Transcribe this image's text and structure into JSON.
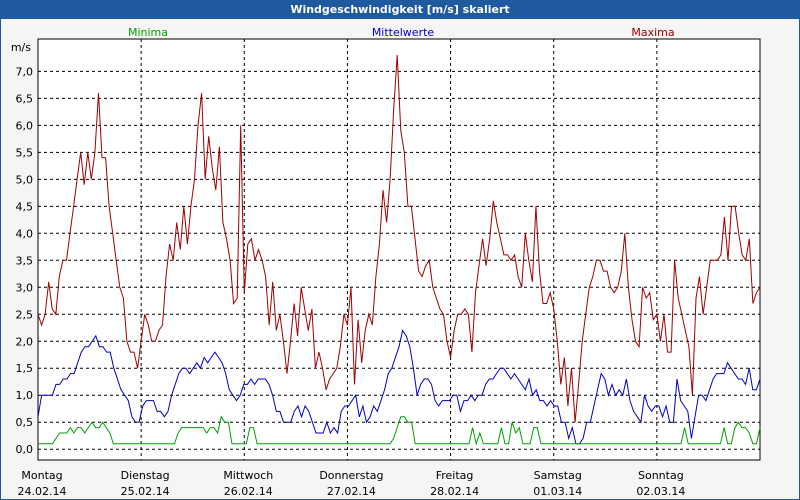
{
  "window": {
    "title": "Windgeschwindigkeit [m/s] skaliert"
  },
  "legend": {
    "minima": "Minima",
    "mittelwerte": "Mittelwerte",
    "maxima": "Maxima"
  },
  "colors": {
    "title_bar": "#1f5a9e",
    "plot_bg": "#ffffff",
    "grid": "#000000",
    "minima": "#00a000",
    "mittelwerte": "#0000c0",
    "maxima": "#a00000"
  },
  "chart_data": {
    "type": "line",
    "title": "Windgeschwindigkeit [m/s] skaliert",
    "ylabel": "m/s",
    "xlabel": "",
    "ylim": [
      -0.2,
      7.6
    ],
    "yticks": [
      "0,0",
      "0,5",
      "1,0",
      "1,5",
      "2,0",
      "2,5",
      "3,0",
      "3,5",
      "4,0",
      "4,5",
      "5,0",
      "5,5",
      "6,0",
      "6,5",
      "7,0"
    ],
    "ytick_values": [
      0,
      0.5,
      1,
      1.5,
      2,
      2.5,
      3,
      3.5,
      4,
      4.5,
      5,
      5.5,
      6,
      6.5,
      7
    ],
    "x_day_labels": [
      {
        "day": "Montag",
        "date": "24.02.14"
      },
      {
        "day": "Dienstag",
        "date": "25.02.14"
      },
      {
        "day": "Mittwoch",
        "date": "26.02.14"
      },
      {
        "day": "Donnerstag",
        "date": "27.02.14"
      },
      {
        "day": "Freitag",
        "date": "28.02.14"
      },
      {
        "day": "Samstag",
        "date": "01.03.14"
      },
      {
        "day": "Sonntag",
        "date": "02.03.14"
      }
    ],
    "grid": true,
    "series": [
      {
        "name": "Maxima",
        "values": [
          2.5,
          2.3,
          2.5,
          3.1,
          2.6,
          2.5,
          3.2,
          3.5,
          3.5,
          4.0,
          4.5,
          5.0,
          5.5,
          4.9,
          5.5,
          5.0,
          5.5,
          6.6,
          5.4,
          5.4,
          4.5,
          4.0,
          3.5,
          3.0,
          2.8,
          2.0,
          1.8,
          1.8,
          1.5,
          2.0,
          2.5,
          2.3,
          2.0,
          2.0,
          2.2,
          2.3,
          3.2,
          3.8,
          3.5,
          4.2,
          3.7,
          4.5,
          3.8,
          4.5,
          5.0,
          6.0,
          6.6,
          5.0,
          5.8,
          5.2,
          4.8,
          5.6,
          4.2,
          3.9,
          3.5,
          2.7,
          2.8,
          6.0,
          2.9,
          3.8,
          3.9,
          3.5,
          3.7,
          3.5,
          3.2,
          2.3,
          3.1,
          2.2,
          2.5,
          2.0,
          1.4,
          2.0,
          2.7,
          2.1,
          3.0,
          2.6,
          2.2,
          2.6,
          1.5,
          1.8,
          1.5,
          1.1,
          1.3,
          1.4,
          1.5,
          1.9,
          2.5,
          2.3,
          3.0,
          1.2,
          2.4,
          1.6,
          2.2,
          2.5,
          2.3,
          3.2,
          3.8,
          4.8,
          4.2,
          5.0,
          6.3,
          7.3,
          5.9,
          5.5,
          4.5,
          4.5,
          3.9,
          3.3,
          3.2,
          3.4,
          3.5,
          3.0,
          2.8,
          2.6,
          2.5,
          2.0,
          1.7,
          2.2,
          2.5,
          2.5,
          2.6,
          2.5,
          1.8,
          2.9,
          3.4,
          3.9,
          3.4,
          3.9,
          4.6,
          4.2,
          3.9,
          3.6,
          3.6,
          3.5,
          3.6,
          3.2,
          3.0,
          4.0,
          3.5,
          3.1,
          4.5,
          3.3,
          2.7,
          2.7,
          2.9,
          2.6,
          2.0,
          1.2,
          1.7,
          0.8,
          1.5,
          0.5,
          1.2,
          2.0,
          2.5,
          3.0,
          3.2,
          3.5,
          3.5,
          3.3,
          3.3,
          3.0,
          2.9,
          3.0,
          3.3,
          4.0,
          3.0,
          2.4,
          2.0,
          1.9,
          3.0,
          2.8,
          2.9,
          2.4,
          2.5,
          2.0,
          2.5,
          1.8,
          1.8,
          3.5,
          2.8,
          2.5,
          2.2,
          1.9,
          1.0,
          2.8,
          3.2,
          2.5,
          3.0,
          3.5,
          3.5,
          3.5,
          3.6,
          4.3,
          3.5,
          4.5,
          4.5,
          4.0,
          3.6,
          3.5,
          3.9,
          2.7,
          2.9,
          3.0
        ]
      },
      {
        "name": "Mittelwerte",
        "values": [
          0.6,
          1.0,
          1.0,
          1.0,
          1.0,
          1.2,
          1.2,
          1.3,
          1.3,
          1.4,
          1.4,
          1.6,
          1.8,
          1.9,
          1.9,
          2.0,
          2.1,
          1.9,
          1.9,
          1.8,
          1.8,
          1.5,
          1.3,
          1.1,
          1.0,
          0.9,
          0.6,
          0.5,
          0.5,
          0.8,
          0.9,
          0.9,
          0.9,
          0.7,
          0.7,
          0.6,
          0.7,
          1.0,
          1.2,
          1.4,
          1.5,
          1.5,
          1.4,
          1.5,
          1.6,
          1.5,
          1.7,
          1.6,
          1.7,
          1.8,
          1.7,
          1.6,
          1.4,
          1.1,
          1.0,
          0.9,
          1.0,
          1.2,
          1.2,
          1.3,
          1.2,
          1.3,
          1.3,
          1.3,
          1.2,
          1.0,
          0.7,
          0.7,
          0.5,
          0.5,
          0.5,
          0.7,
          0.8,
          0.6,
          0.8,
          0.7,
          0.5,
          0.3,
          0.3,
          0.3,
          0.5,
          0.3,
          0.4,
          0.3,
          0.7,
          0.8,
          0.8,
          0.9,
          1.0,
          0.6,
          0.8,
          0.5,
          0.6,
          0.8,
          0.7,
          0.9,
          1.1,
          1.4,
          1.5,
          1.7,
          1.9,
          2.2,
          2.1,
          1.9,
          1.5,
          1.0,
          1.2,
          1.3,
          1.3,
          1.2,
          0.9,
          0.8,
          0.9,
          0.9,
          0.9,
          1.0,
          1.0,
          0.7,
          0.9,
          0.9,
          1.0,
          0.9,
          1.0,
          1.0,
          1.2,
          1.3,
          1.3,
          1.4,
          1.5,
          1.5,
          1.4,
          1.3,
          1.4,
          1.3,
          1.2,
          1.1,
          1.3,
          1.0,
          1.1,
          0.9,
          0.9,
          0.8,
          0.9,
          0.8,
          0.8,
          0.5,
          0.5,
          0.2,
          0.4,
          0.1,
          0.1,
          0.2,
          0.5,
          0.5,
          0.8,
          1.1,
          1.4,
          1.3,
          1.0,
          1.2,
          1.0,
          1.1,
          1.0,
          1.3,
          0.9,
          0.7,
          0.6,
          0.5,
          1.0,
          0.8,
          0.7,
          0.8,
          0.8,
          0.6,
          0.8,
          0.5,
          0.5,
          1.3,
          0.9,
          0.8,
          0.7,
          0.2,
          0.6,
          1.0,
          1.0,
          0.9,
          1.1,
          1.3,
          1.4,
          1.4,
          1.4,
          1.6,
          1.5,
          1.4,
          1.3,
          1.3,
          1.2,
          1.5,
          1.1,
          1.1,
          1.3
        ]
      },
      {
        "name": "Minima",
        "values": [
          0.1,
          0.1,
          0.1,
          0.1,
          0.1,
          0.2,
          0.3,
          0.3,
          0.3,
          0.4,
          0.3,
          0.4,
          0.4,
          0.3,
          0.4,
          0.5,
          0.4,
          0.4,
          0.5,
          0.4,
          0.3,
          0.1,
          0.1,
          0.1,
          0.1,
          0.1,
          0.1,
          0.1,
          0.1,
          0.1,
          0.1,
          0.1,
          0.1,
          0.1,
          0.1,
          0.1,
          0.1,
          0.1,
          0.1,
          0.3,
          0.4,
          0.4,
          0.4,
          0.4,
          0.4,
          0.4,
          0.4,
          0.3,
          0.4,
          0.4,
          0.3,
          0.6,
          0.5,
          0.5,
          0.1,
          0.1,
          0.1,
          0.1,
          0.1,
          0.4,
          0.4,
          0.1,
          0.1,
          0.1,
          0.1,
          0.1,
          0.1,
          0.1,
          0.1,
          0.1,
          0.1,
          0.1,
          0.1,
          0.1,
          0.1,
          0.1,
          0.1,
          0.1,
          0.1,
          0.1,
          0.1,
          0.1,
          0.1,
          0.1,
          0.1,
          0.1,
          0.1,
          0.1,
          0.1,
          0.1,
          0.1,
          0.1,
          0.1,
          0.1,
          0.1,
          0.1,
          0.1,
          0.1,
          0.1,
          0.2,
          0.4,
          0.6,
          0.6,
          0.5,
          0.5,
          0.1,
          0.1,
          0.1,
          0.1,
          0.1,
          0.1,
          0.1,
          0.1,
          0.1,
          0.1,
          0.1,
          0.1,
          0.1,
          0.1,
          0.1,
          0.1,
          0.4,
          0.1,
          0.3,
          0.1,
          0.1,
          0.1,
          0.1,
          0.1,
          0.4,
          0.1,
          0.1,
          0.5,
          0.3,
          0.4,
          0.1,
          0.1,
          0.1,
          0.4,
          0.4,
          0.1,
          0.1,
          0.1,
          0.1,
          0.1,
          0.1,
          0.1,
          0.1,
          0.1,
          0.1,
          0.1,
          0.1,
          0.1,
          0.1,
          0.1,
          0.1,
          0.1,
          0.1,
          0.1,
          0.1,
          0.1,
          0.1,
          0.1,
          0.1,
          0.1,
          0.1,
          0.1,
          0.1,
          0.1,
          0.1,
          0.1,
          0.1,
          0.1,
          0.1,
          0.1,
          0.1,
          0.1,
          0.1,
          0.1,
          0.1,
          0.4,
          0.1,
          0.1,
          0.1,
          0.1,
          0.1,
          0.1,
          0.1,
          0.1,
          0.1,
          0.1,
          0.4,
          0.1,
          0.1,
          0.4,
          0.5,
          0.4,
          0.4,
          0.3,
          0.1,
          0.1,
          0.4
        ]
      }
    ]
  }
}
